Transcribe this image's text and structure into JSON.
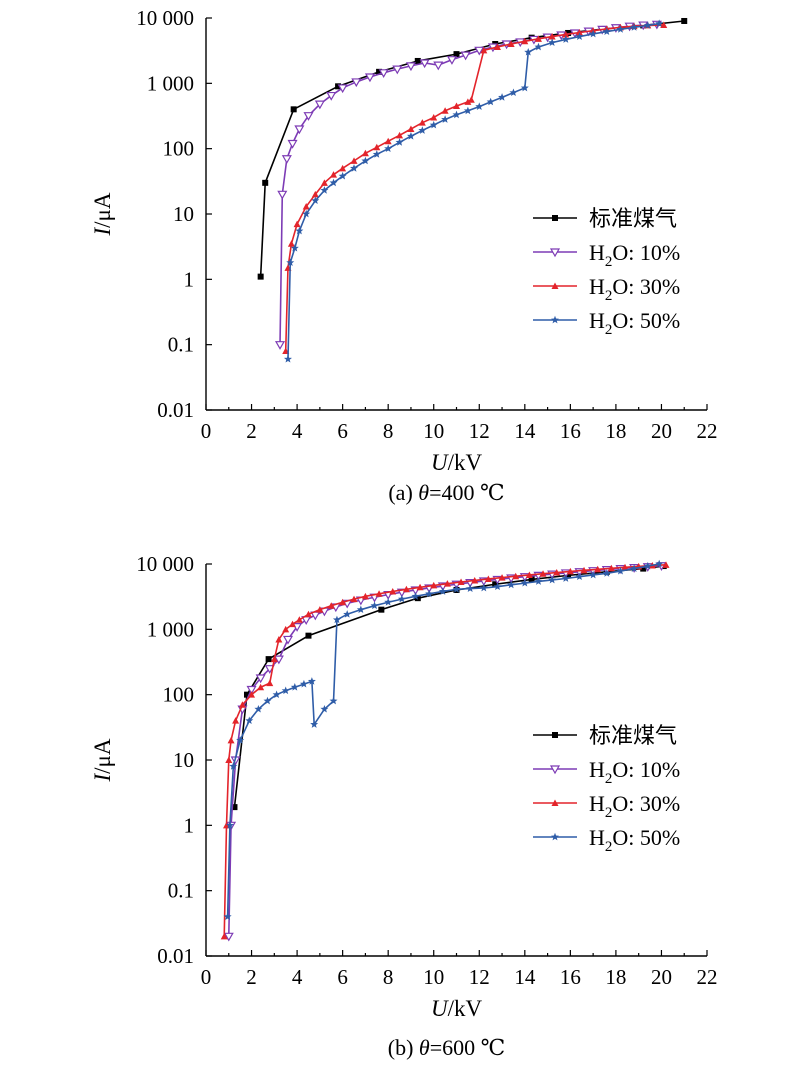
{
  "chart_data": [
    {
      "type": "line",
      "caption": "(a) θ=400 ℃",
      "caption_prefix": "(a) ",
      "caption_var": "θ",
      "caption_value": "=400 ℃",
      "xlabel_var": "U",
      "xlabel_unit": "/kV",
      "ylabel_var": "I",
      "ylabel_unit": "/μA",
      "x_scale": "linear",
      "y_scale": "log",
      "xlim": [
        0,
        22
      ],
      "ylim": [
        0.01,
        10000
      ],
      "x_ticks": [
        0,
        2,
        4,
        6,
        8,
        10,
        12,
        14,
        16,
        18,
        20,
        22
      ],
      "y_ticks": [
        0.01,
        0.1,
        1,
        10,
        100,
        1000,
        10000
      ],
      "y_tick_labels": [
        "0.01",
        "0.1",
        "1",
        "10",
        "100",
        "1 000",
        "10 000"
      ],
      "grid": false,
      "legend_position": "right",
      "series": [
        {
          "name": "标准煤气",
          "name_main": "标准煤气",
          "name_sub": "",
          "name_tail": "",
          "color": "#000000",
          "marker": "square",
          "x": [
            2.4,
            2.6,
            3.85,
            5.8,
            7.6,
            9.3,
            11.0,
            12.7,
            14.3,
            15.9,
            17.5,
            19.2,
            21.0
          ],
          "y": [
            1.1,
            30,
            400,
            900,
            1500,
            2200,
            2800,
            4000,
            5000,
            5900,
            6800,
            7700,
            9000
          ]
        },
        {
          "name": "H2O: 10%",
          "name_main": "H",
          "name_sub": "2",
          "name_tail": "O: 10%",
          "color": "#7d3bb5",
          "marker": "triangle-down",
          "x": [
            3.25,
            3.35,
            3.55,
            3.8,
            4.1,
            4.5,
            5.0,
            5.5,
            6.0,
            6.6,
            7.2,
            7.8,
            8.4,
            9.0,
            9.6,
            10.2,
            10.8,
            11.4,
            12.0,
            12.6,
            13.2,
            13.8,
            14.4,
            15.0,
            15.6,
            16.2,
            16.8,
            17.4,
            18.0,
            18.6,
            19.2,
            19.8
          ],
          "y": [
            0.1,
            20,
            70,
            120,
            200,
            320,
            480,
            650,
            850,
            1050,
            1250,
            1450,
            1650,
            1850,
            2050,
            1900,
            2300,
            2700,
            3200,
            3600,
            4000,
            4300,
            4700,
            5100,
            5500,
            5900,
            6300,
            6700,
            7100,
            7500,
            7800,
            8000
          ]
        },
        {
          "name": "H2O: 30%",
          "name_main": "H",
          "name_sub": "2",
          "name_tail": "O: 30%",
          "color": "#e3242b",
          "marker": "triangle-up",
          "x": [
            3.5,
            3.6,
            3.75,
            4.0,
            4.4,
            4.8,
            5.2,
            5.6,
            6.0,
            6.5,
            7.0,
            7.5,
            8.0,
            8.5,
            9.0,
            9.5,
            10.0,
            10.5,
            11.0,
            11.5,
            11.65,
            12.2,
            12.8,
            13.4,
            14.0,
            14.6,
            15.2,
            15.8,
            16.4,
            17.0,
            17.6,
            18.2,
            18.8,
            19.4,
            20.1
          ],
          "y": [
            0.08,
            1.5,
            3.5,
            7,
            13,
            20,
            30,
            40,
            50,
            65,
            85,
            105,
            130,
            160,
            200,
            250,
            300,
            380,
            450,
            520,
            560,
            3200,
            3600,
            4000,
            4400,
            4800,
            5200,
            5600,
            6000,
            6400,
            6800,
            7200,
            7500,
            7700,
            7800
          ]
        },
        {
          "name": "H2O: 50%",
          "name_main": "H",
          "name_sub": "2",
          "name_tail": "O: 50%",
          "color": "#2f5da8",
          "marker": "star",
          "x": [
            3.6,
            3.7,
            3.9,
            4.1,
            4.4,
            4.8,
            5.2,
            5.6,
            6.0,
            6.5,
            7.0,
            7.5,
            8.0,
            8.5,
            9.0,
            9.5,
            10.0,
            10.5,
            11.0,
            11.5,
            12.0,
            12.5,
            13.0,
            13.5,
            14.0,
            14.15,
            14.6,
            15.2,
            15.8,
            16.4,
            17.0,
            17.6,
            18.2,
            18.8,
            19.4,
            19.9
          ],
          "y": [
            0.06,
            1.8,
            3,
            5.5,
            10,
            16,
            23,
            30,
            38,
            50,
            65,
            82,
            100,
            125,
            155,
            190,
            230,
            280,
            330,
            380,
            440,
            520,
            610,
            720,
            850,
            3000,
            3600,
            4200,
            4700,
            5200,
            5700,
            6200,
            6700,
            7200,
            7700,
            8200
          ]
        }
      ]
    },
    {
      "type": "line",
      "caption": "(b) θ=600 ℃",
      "caption_prefix": "(b) ",
      "caption_var": "θ",
      "caption_value": "=600 ℃",
      "xlabel_var": "U",
      "xlabel_unit": "/kV",
      "ylabel_var": "I",
      "ylabel_unit": "/μA",
      "x_scale": "linear",
      "y_scale": "log",
      "xlim": [
        0,
        22
      ],
      "ylim": [
        0.01,
        10000
      ],
      "x_ticks": [
        0,
        2,
        4,
        6,
        8,
        10,
        12,
        14,
        16,
        18,
        20,
        22
      ],
      "y_ticks": [
        0.01,
        0.1,
        1,
        10,
        100,
        1000,
        10000
      ],
      "y_tick_labels": [
        "0.01",
        "0.1",
        "1",
        "10",
        "100",
        "1 000",
        "10 000"
      ],
      "grid": false,
      "legend_position": "right",
      "series": [
        {
          "name": "标准煤气",
          "name_main": "标准煤气",
          "name_sub": "",
          "name_tail": "",
          "color": "#000000",
          "marker": "square",
          "x": [
            1.25,
            1.8,
            2.75,
            4.5,
            7.7,
            9.3,
            11.0,
            12.7,
            14.3,
            15.9,
            17.6,
            19.2,
            20.1
          ],
          "y": [
            1.9,
            100,
            350,
            800,
            2000,
            3000,
            4000,
            4900,
            5800,
            6700,
            7600,
            8500,
            9300
          ]
        },
        {
          "name": "H2O: 10%",
          "name_main": "H",
          "name_sub": "2",
          "name_tail": "O: 10%",
          "color": "#7d3bb5",
          "marker": "triangle-down",
          "x": [
            1.0,
            1.1,
            1.3,
            1.6,
            2.0,
            2.4,
            2.8,
            3.2,
            3.6,
            4.0,
            4.4,
            4.8,
            5.2,
            5.7,
            6.2,
            6.8,
            7.4,
            8.0,
            8.6,
            9.2,
            9.8,
            10.4,
            11.0,
            11.6,
            12.2,
            12.8,
            13.4,
            14.0,
            14.6,
            15.2,
            15.8,
            16.4,
            17.0,
            17.6,
            18.2,
            18.8,
            19.4,
            20.0
          ],
          "y": [
            0.02,
            1,
            10,
            60,
            120,
            180,
            250,
            350,
            700,
            1100,
            1400,
            1650,
            1900,
            2200,
            2500,
            2800,
            3100,
            3400,
            3700,
            4000,
            4300,
            4600,
            4900,
            5200,
            5500,
            5800,
            6100,
            6400,
            6700,
            7000,
            7300,
            7600,
            7900,
            8200,
            8500,
            8800,
            9100,
            9400
          ]
        },
        {
          "name": "H2O: 30%",
          "name_main": "H",
          "name_sub": "2",
          "name_tail": "O: 30%",
          "color": "#e3242b",
          "marker": "triangle-up",
          "x": [
            0.8,
            0.9,
            1.0,
            1.1,
            1.3,
            1.6,
            2.0,
            2.4,
            2.8,
            3.0,
            3.2,
            3.5,
            3.8,
            4.1,
            4.5,
            5.0,
            5.5,
            6.0,
            6.5,
            7.0,
            7.6,
            8.2,
            8.8,
            9.4,
            10.0,
            10.6,
            11.2,
            11.8,
            12.4,
            13.0,
            13.6,
            14.2,
            14.8,
            15.4,
            16.0,
            16.6,
            17.2,
            17.8,
            18.4,
            19.0,
            19.6,
            20.2
          ],
          "y": [
            0.02,
            1,
            10,
            20,
            40,
            70,
            100,
            130,
            150,
            350,
            700,
            1000,
            1200,
            1400,
            1700,
            2000,
            2300,
            2600,
            2900,
            3200,
            3500,
            3800,
            4100,
            4400,
            4700,
            5000,
            5300,
            5600,
            5900,
            6200,
            6500,
            6800,
            7100,
            7400,
            7700,
            8000,
            8300,
            8600,
            8900,
            9200,
            9500,
            9700
          ]
        },
        {
          "name": "H2O: 50%",
          "name_main": "H",
          "name_sub": "2",
          "name_tail": "O: 50%",
          "color": "#2f5da8",
          "marker": "star",
          "x": [
            0.95,
            1.05,
            1.2,
            1.5,
            1.9,
            2.3,
            2.7,
            3.1,
            3.5,
            3.9,
            4.3,
            4.65,
            4.75,
            5.2,
            5.6,
            5.75,
            6.2,
            6.8,
            7.4,
            8.0,
            8.6,
            9.2,
            9.8,
            10.4,
            11.0,
            11.6,
            12.2,
            12.8,
            13.4,
            14.0,
            14.6,
            15.2,
            15.8,
            16.4,
            17.0,
            17.6,
            18.2,
            18.8,
            19.4,
            19.9
          ],
          "y": [
            0.04,
            1,
            8,
            20,
            40,
            60,
            80,
            100,
            115,
            130,
            145,
            160,
            35,
            60,
            80,
            1400,
            1700,
            2000,
            2300,
            2600,
            2900,
            3200,
            3500,
            3800,
            4100,
            4200,
            4300,
            4500,
            4800,
            5100,
            5400,
            5700,
            6000,
            6400,
            6800,
            7200,
            7800,
            8500,
            9300,
            10000
          ]
        }
      ]
    }
  ]
}
